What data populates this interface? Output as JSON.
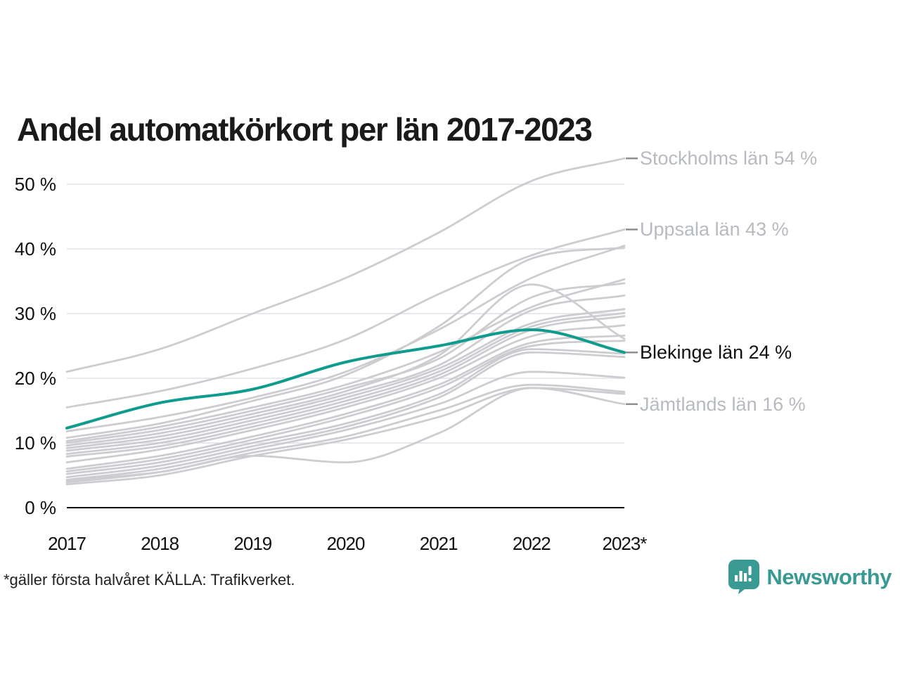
{
  "title": "Andel automatkörkort per län 2017-2023",
  "footnote": "*gäller första halvåret KÄLLA: Trafikverket.",
  "branding": {
    "logo_text": "Newsworthy",
    "logo_icon": "speech-bubble-bar-chart"
  },
  "colors": {
    "highlight_line": "#0f9b8e",
    "background_line": "#cdcdd1",
    "gridline": "#e8e8ee",
    "axis": "#000000",
    "annotation_tick": "#8f8f8f",
    "annotation_gray": "#b7bbbf",
    "annotation_black": "#111111",
    "brand_teal": "#399a93"
  },
  "chart_data": {
    "type": "line",
    "title": "Andel automatkörkort per län 2017-2023",
    "x": [
      2017,
      2018,
      2019,
      2020,
      2021,
      2022,
      2023
    ],
    "x_tick_labels": [
      "2017",
      "2018",
      "2019",
      "2020",
      "2021",
      "2022",
      "2023*"
    ],
    "y_ticks": [
      0,
      10,
      20,
      30,
      40,
      50
    ],
    "y_tick_labels": [
      "0 %",
      "10 %",
      "20 %",
      "30 %",
      "40 %",
      "50 %"
    ],
    "ylim": [
      0,
      57
    ],
    "grid": "horizontal",
    "legend_position": "right-annotations",
    "annotations": [
      {
        "label": "Stockholms län 54 %",
        "value": 54,
        "emphasis": false
      },
      {
        "label": "Uppsala län 43 %",
        "value": 43,
        "emphasis": false
      },
      {
        "label": "Blekinge län 24 %",
        "value": 24,
        "emphasis": true
      },
      {
        "label": "Jämtlands län 16 %",
        "value": 16,
        "emphasis": false
      }
    ],
    "series": [
      {
        "name": "Stockholms län",
        "highlight": false,
        "values": [
          21,
          24.5,
          30,
          35.5,
          42.5,
          50.5,
          54
        ]
      },
      {
        "name": "Uppsala län",
        "highlight": false,
        "values": [
          15.5,
          18,
          21.5,
          26,
          33,
          39,
          43
        ]
      },
      {
        "name": "Blekinge län",
        "highlight": true,
        "values": [
          12.3,
          16.2,
          18.3,
          22.5,
          25,
          27.5,
          24
        ]
      },
      {
        "name": "Jämtlands län",
        "highlight": false,
        "values": [
          4.2,
          5.5,
          8,
          7,
          11.5,
          18.5,
          16
        ]
      },
      {
        "name": "",
        "highlight": false,
        "values": [
          11.8,
          14,
          17,
          21,
          27.5,
          35.5,
          40.5
        ]
      },
      {
        "name": "",
        "highlight": false,
        "values": [
          10.8,
          13,
          16.5,
          20.5,
          28,
          38.5,
          40.2
        ]
      },
      {
        "name": "",
        "highlight": false,
        "values": [
          10.3,
          12.5,
          15.5,
          19,
          24,
          31,
          35.3
        ]
      },
      {
        "name": "",
        "highlight": false,
        "values": [
          10.0,
          12,
          15,
          18.5,
          23,
          32.5,
          34.7
        ]
      },
      {
        "name": "",
        "highlight": false,
        "values": [
          9.6,
          11.5,
          14.5,
          18,
          23.5,
          34.5,
          26.1
        ]
      },
      {
        "name": "",
        "highlight": false,
        "values": [
          9.2,
          11,
          14,
          17.5,
          22,
          30.5,
          32.8
        ]
      },
      {
        "name": "",
        "highlight": false,
        "values": [
          8.8,
          10.5,
          13.5,
          17,
          21.5,
          28.5,
          30.7
        ]
      },
      {
        "name": "",
        "highlight": false,
        "values": [
          8.3,
          10,
          13,
          16.5,
          21,
          28,
          30.1
        ]
      },
      {
        "name": "",
        "highlight": false,
        "values": [
          7.9,
          9.5,
          12.5,
          16,
          20.5,
          27.5,
          29.6
        ]
      },
      {
        "name": "",
        "highlight": false,
        "values": [
          7.0,
          9,
          12,
          15.5,
          20,
          26.5,
          28.2
        ]
      },
      {
        "name": "",
        "highlight": false,
        "values": [
          6.0,
          8,
          11,
          14.5,
          19,
          25.5,
          26.6
        ]
      },
      {
        "name": "",
        "highlight": false,
        "values": [
          5.6,
          7.5,
          10.5,
          14,
          18.5,
          25,
          25.8
        ]
      },
      {
        "name": "",
        "highlight": false,
        "values": [
          5.2,
          7,
          10,
          13,
          17.5,
          24.5,
          23.8
        ]
      },
      {
        "name": "",
        "highlight": false,
        "values": [
          4.7,
          6.5,
          9.5,
          12.5,
          17,
          24,
          23.3
        ]
      },
      {
        "name": "",
        "highlight": false,
        "values": [
          4.3,
          6,
          9,
          12,
          16,
          21,
          20.1
        ]
      },
      {
        "name": "",
        "highlight": false,
        "values": [
          3.9,
          5.5,
          8.5,
          11,
          15,
          19,
          17.9
        ]
      },
      {
        "name": "",
        "highlight": false,
        "values": [
          3.6,
          5,
          8,
          10.5,
          14,
          18.5,
          17.6
        ]
      }
    ]
  }
}
